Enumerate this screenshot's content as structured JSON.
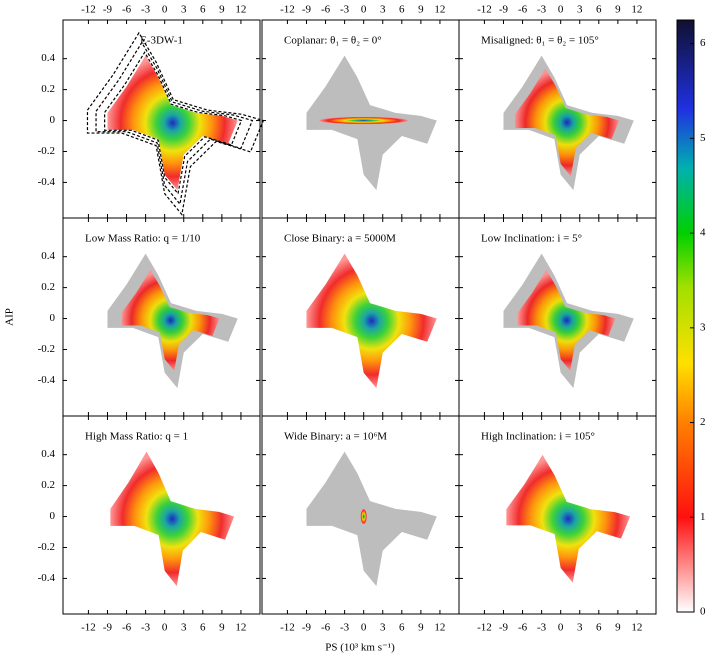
{
  "chart_data": {
    "type": "heatmap",
    "xlabel": "PS (10³ km s⁻¹)",
    "ylabel": "AIP",
    "xlim": [
      -16,
      15
    ],
    "ylim": [
      -0.63,
      0.65
    ],
    "xticks": [
      -12,
      -9,
      -6,
      -3,
      0,
      3,
      6,
      9,
      12
    ],
    "yticks": [
      -0.4,
      -0.2,
      0,
      0.2,
      0.4
    ],
    "clim": [
      0,
      6.25
    ],
    "cticks": [
      0,
      1,
      2,
      3,
      4,
      5,
      6
    ],
    "panels": [
      {
        "title": "E-3DW-1"
      },
      {
        "title": "Coplanar: θ₁ = θ₂ = 0°"
      },
      {
        "title": "Misaligned: θ₁ = θ₂ = 105°"
      },
      {
        "title": "Low Mass Ratio: q = 1/10"
      },
      {
        "title": "Close Binary: a = 5000M"
      },
      {
        "title": "Low Inclination: i = 5°"
      },
      {
        "title": "High Mass Ratio: q = 1"
      },
      {
        "title": "Wide Binary: a = 10⁶M"
      },
      {
        "title": "High Inclination: i = 105°"
      }
    ]
  }
}
